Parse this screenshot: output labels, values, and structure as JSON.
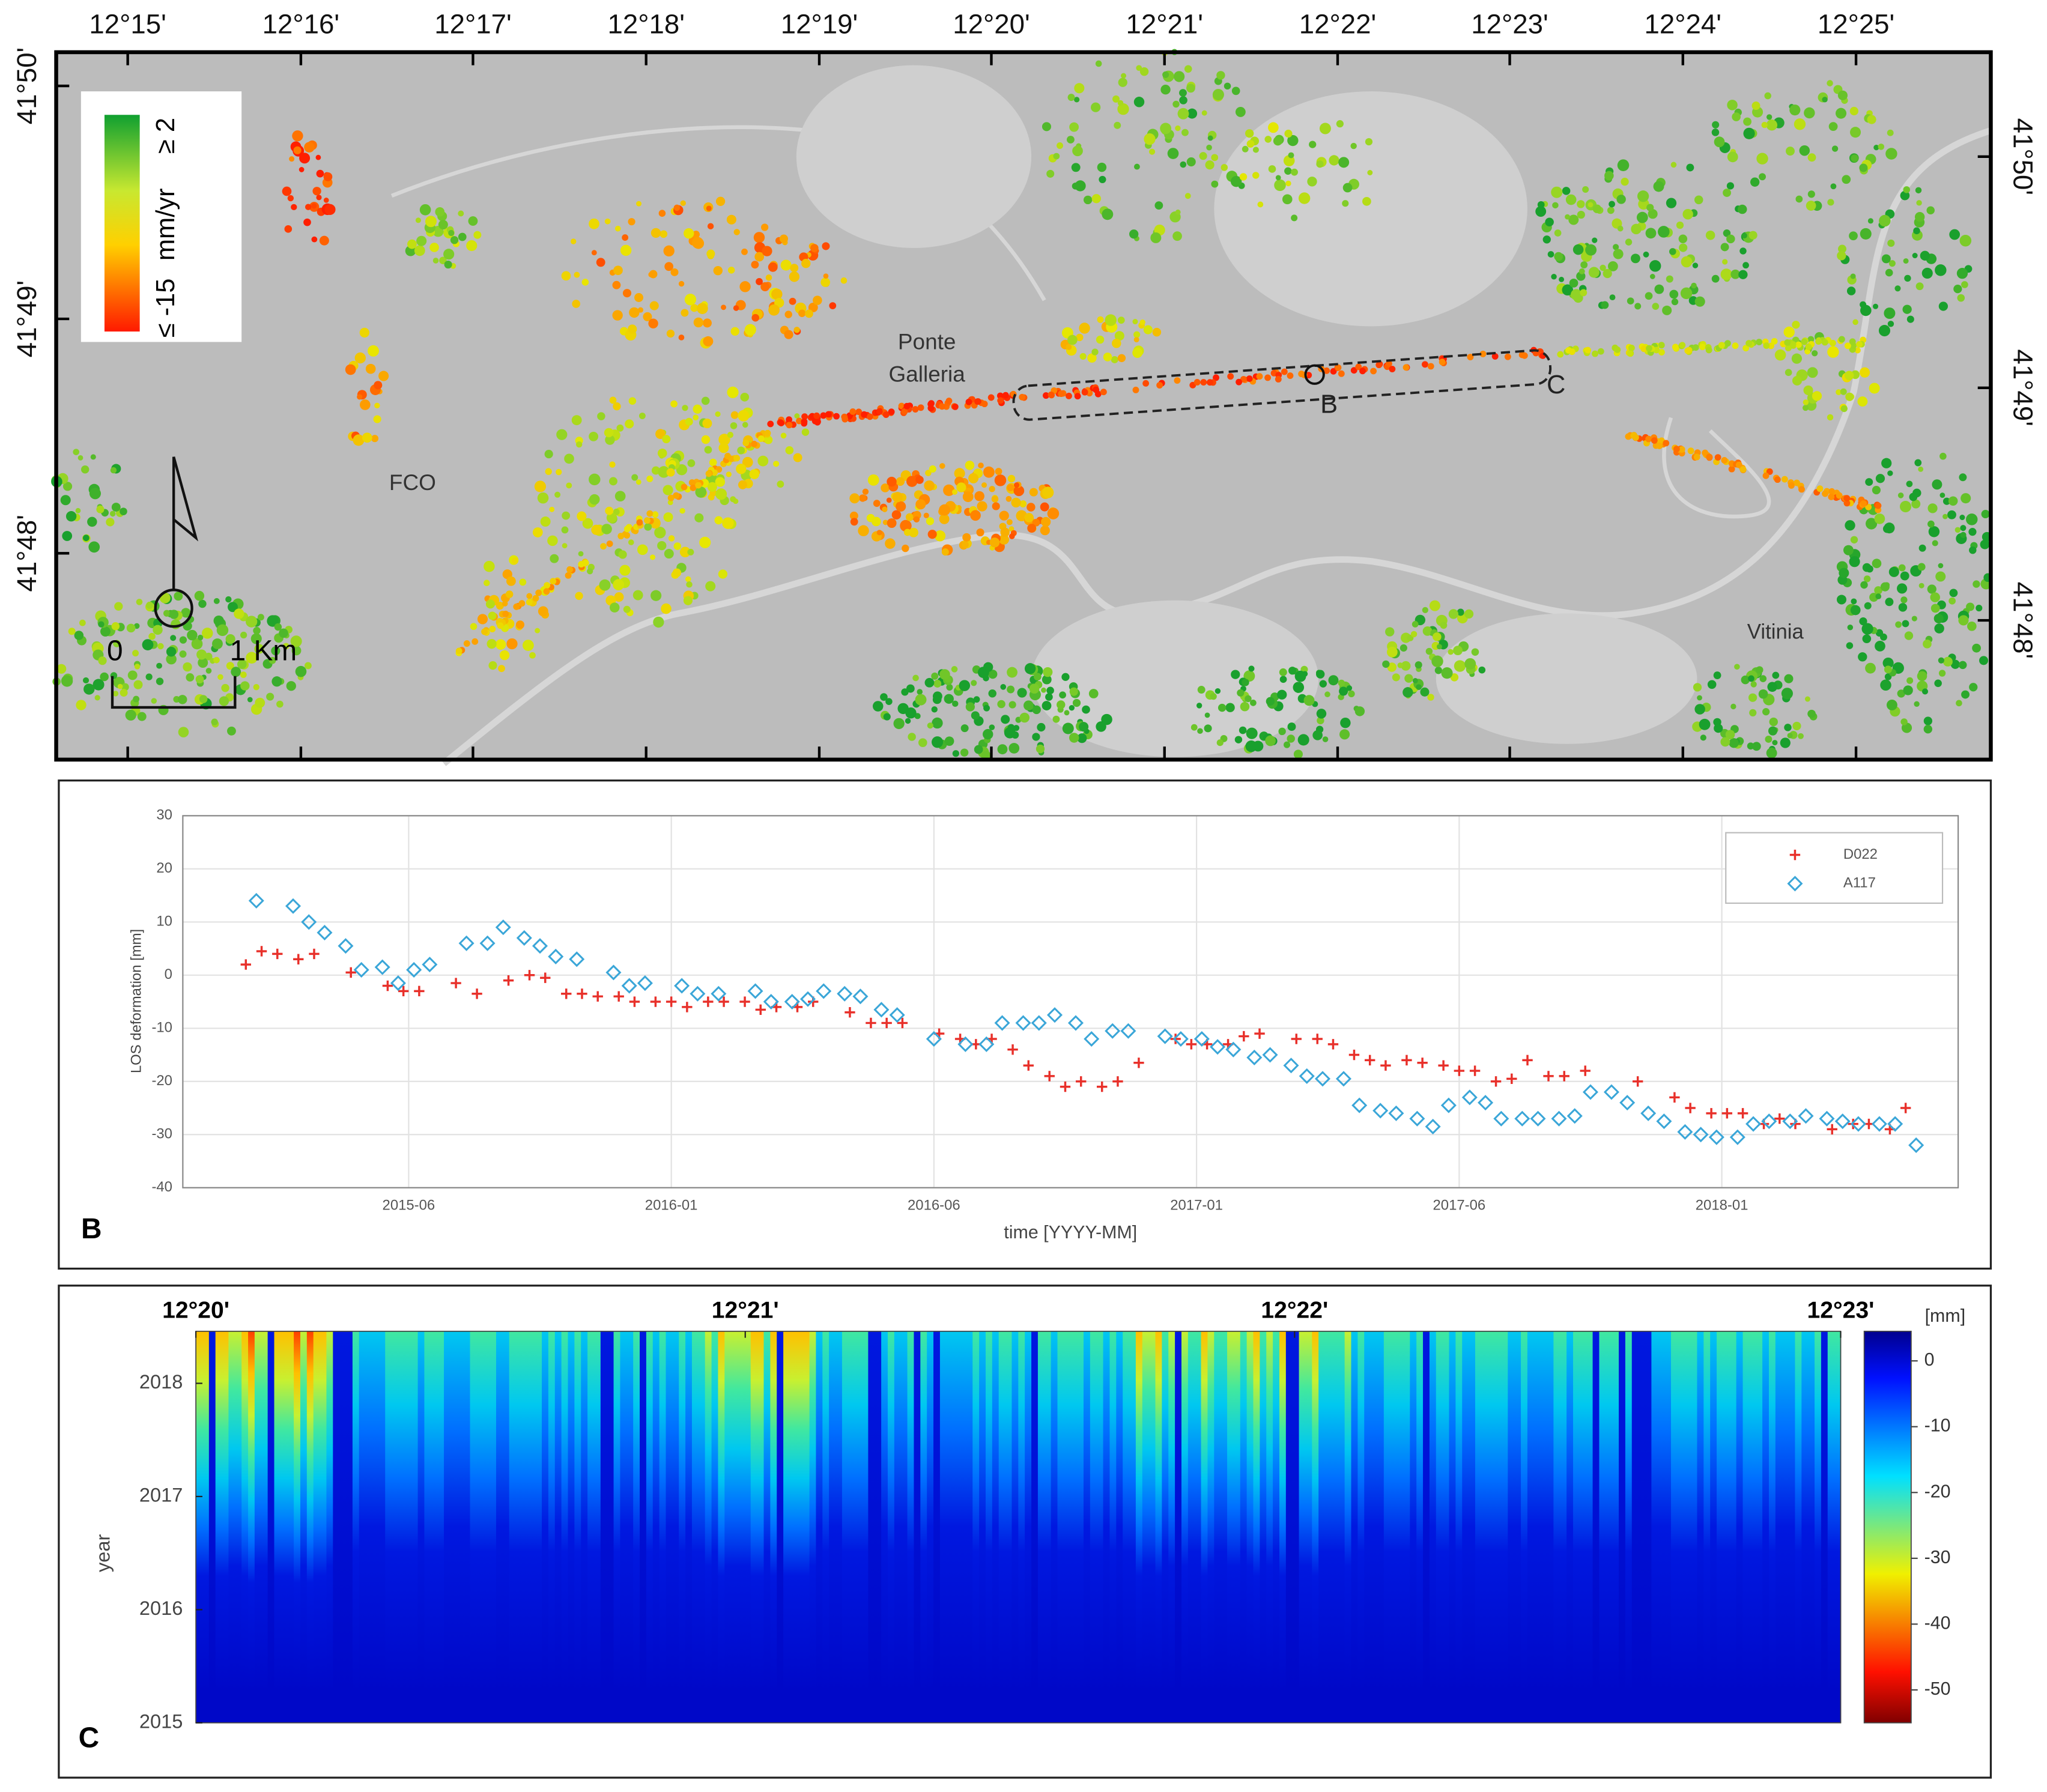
{
  "chart_data": [
    {
      "type": "map",
      "xlim": [
        12.2431,
        12.4297
      ],
      "xticks": [
        {
          "value": 12.25,
          "label": "12°15'"
        },
        {
          "value": 12.2667,
          "label": "12°16'"
        },
        {
          "value": 12.2833,
          "label": "12°17'"
        },
        {
          "value": 12.3,
          "label": "12°18'"
        },
        {
          "value": 12.3167,
          "label": "12°19'"
        },
        {
          "value": 12.3333,
          "label": "12°20'"
        },
        {
          "value": 12.35,
          "label": "12°21'"
        },
        {
          "value": 12.3667,
          "label": "12°22'"
        },
        {
          "value": 12.3833,
          "label": "12°23'"
        },
        {
          "value": 12.4,
          "label": "12°24'"
        },
        {
          "value": 12.4167,
          "label": "12°25'"
        }
      ],
      "ylim": [
        41.7853,
        41.8357
      ],
      "yticks": [
        {
          "value": 41.8333,
          "label": "41°50'"
        },
        {
          "value": 41.8167,
          "label": "41°49'"
        },
        {
          "value": 41.8,
          "label": "41°48'"
        }
      ],
      "y2lim": [
        41.79,
        41.8408
      ],
      "y2ticks": [
        {
          "value": 41.8333,
          "label": "41°50'"
        },
        {
          "value": 41.8167,
          "label": "41°49'"
        },
        {
          "value": 41.8,
          "label": "41°48'"
        }
      ],
      "legend": {
        "max_label": "≥ 2",
        "unit": "mm/yr",
        "min_label": "≤ -15"
      },
      "annotations": [
        "Ponte",
        "Galleria",
        "FCO",
        "Vitinia",
        "B",
        "C"
      ],
      "scale_bar": [
        "0",
        "1 Km"
      ]
    },
    {
      "type": "scatter",
      "panel_label": "B",
      "xlabel": "time [YYYY-MM]",
      "ylabel": "LOS deformation [mm]",
      "xlim": [
        2015.05,
        2018.43
      ],
      "xticks": [
        {
          "value": 2015.48,
          "label": "2015-06"
        },
        {
          "value": 2015.98,
          "label": "2016-01"
        },
        {
          "value": 2016.48,
          "label": "2016-06"
        },
        {
          "value": 2016.98,
          "label": "2017-01"
        },
        {
          "value": 2017.48,
          "label": "2017-06"
        },
        {
          "value": 2017.98,
          "label": "2018-01"
        }
      ],
      "ylim": [
        -40,
        30
      ],
      "yticks": [
        30,
        20,
        10,
        0,
        -10,
        -20,
        -30,
        -40
      ],
      "grid": true,
      "legend": "top-right",
      "series": [
        {
          "name": "D022",
          "color": "#e8302a",
          "x": [
            2015.17,
            2015.2,
            2015.23,
            2015.27,
            2015.3,
            2015.37,
            2015.44,
            2015.47,
            2015.5,
            2015.57,
            2015.61,
            2015.67,
            2015.71,
            2015.74,
            2015.78,
            2015.81,
            2015.84,
            2015.88,
            2015.91,
            2015.95,
            2015.98,
            2016.01,
            2016.05,
            2016.08,
            2016.12,
            2016.15,
            2016.18,
            2016.22,
            2016.25,
            2016.32,
            2016.36,
            2016.39,
            2016.42,
            2016.49,
            2016.53,
            2016.56,
            2016.59,
            2016.63,
            2016.66,
            2016.7,
            2016.73,
            2016.76,
            2016.8,
            2016.83,
            2016.87,
            2016.94,
            2016.97,
            2017.0,
            2017.04,
            2017.07,
            2017.1,
            2017.17,
            2017.21,
            2017.24,
            2017.28,
            2017.31,
            2017.34,
            2017.38,
            2017.41,
            2017.45,
            2017.48,
            2017.51,
            2017.55,
            2017.58,
            2017.61,
            2017.65,
            2017.68,
            2017.72,
            2017.82,
            2017.89,
            2017.92,
            2017.96,
            2017.99,
            2018.02,
            2018.06,
            2018.09,
            2018.12,
            2018.19,
            2018.23,
            2018.26,
            2018.3,
            2018.33
          ],
          "values": [
            2,
            4.5,
            4,
            3,
            4,
            0.5,
            -2,
            -3,
            -3,
            -1.5,
            -3.5,
            -1,
            0,
            -0.5,
            -3.5,
            -3.5,
            -4,
            -4,
            -5,
            -5,
            -5,
            -6,
            -5,
            -5,
            -5,
            -6.5,
            -6,
            -6,
            -5,
            -7,
            -9,
            -9,
            -9,
            -11,
            -12,
            -13,
            -12,
            -14,
            -17,
            -19,
            -21,
            -20,
            -21,
            -20,
            -16.5,
            -12,
            -13,
            -13,
            -13,
            -11.5,
            -11,
            -12,
            -12,
            -13,
            -15,
            -16,
            -17,
            -16,
            -16.5,
            -17,
            -18,
            -18,
            -20,
            -19.5,
            -16,
            -19,
            -19,
            -18,
            -20,
            -23,
            -25,
            -26,
            -26,
            -26,
            -28,
            -27,
            -28,
            -29,
            -28,
            -28,
            -29,
            -25
          ]
        },
        {
          "name": "A117",
          "color": "#3aa6d8",
          "x": [
            2015.19,
            2015.26,
            2015.29,
            2015.32,
            2015.36,
            2015.39,
            2015.43,
            2015.46,
            2015.49,
            2015.52,
            2015.59,
            2015.63,
            2015.66,
            2015.7,
            2015.73,
            2015.76,
            2015.8,
            2015.87,
            2015.9,
            2015.93,
            2016.0,
            2016.03,
            2016.07,
            2016.14,
            2016.17,
            2016.21,
            2016.24,
            2016.27,
            2016.31,
            2016.34,
            2016.38,
            2016.41,
            2016.48,
            2016.54,
            2016.58,
            2016.61,
            2016.65,
            2016.68,
            2016.71,
            2016.75,
            2016.78,
            2016.82,
            2016.85,
            2016.92,
            2016.95,
            2016.99,
            2017.02,
            2017.05,
            2017.09,
            2017.12,
            2017.16,
            2017.19,
            2017.22,
            2017.26,
            2017.29,
            2017.33,
            2017.36,
            2017.4,
            2017.43,
            2017.46,
            2017.5,
            2017.53,
            2017.56,
            2017.6,
            2017.63,
            2017.67,
            2017.7,
            2017.73,
            2017.77,
            2017.8,
            2017.84,
            2017.87,
            2017.91,
            2017.94,
            2017.97,
            2018.01,
            2018.04,
            2018.07,
            2018.11,
            2018.14,
            2018.18,
            2018.21,
            2018.24,
            2018.28,
            2018.31,
            2018.35
          ],
          "values": [
            14,
            13,
            10,
            8,
            5.5,
            1,
            1.5,
            -1.5,
            1,
            2,
            6,
            6,
            9,
            7,
            5.5,
            3.5,
            3,
            0.5,
            -2,
            -1.5,
            -2,
            -3.5,
            -3.5,
            -3,
            -5,
            -5,
            -4.5,
            -3,
            -3.5,
            -4,
            -6.5,
            -7.5,
            -12,
            -13,
            -13,
            -9,
            -9,
            -9,
            -7.5,
            -9,
            -12,
            -10.5,
            -10.5,
            -11.5,
            -12,
            -12,
            -13.5,
            -14,
            -15.5,
            -15,
            -17,
            -19,
            -19.5,
            -19.5,
            -24.5,
            -25.5,
            -26,
            -27,
            -28.5,
            -24.5,
            -23,
            -24,
            -27,
            -27,
            -27,
            -27,
            -26.5,
            -22,
            -22,
            -24,
            -26,
            -27.5,
            -29.5,
            -30,
            -30.5,
            -30.5,
            -28,
            -27.5,
            -27.5,
            -26.5,
            -27,
            -27.5,
            -28,
            -28,
            -28,
            -32
          ]
        }
      ]
    },
    {
      "type": "heatmap",
      "panel_label": "C",
      "ylabel": "year",
      "xlim": [
        12.3333,
        12.3833
      ],
      "xticks": [
        {
          "value": 12.3333,
          "label": "12°20'"
        },
        {
          "value": 12.35,
          "label": "12°21'"
        },
        {
          "value": 12.3667,
          "label": "12°22'"
        },
        {
          "value": 12.3833,
          "label": "12°23'"
        }
      ],
      "ylim": [
        2015,
        2018.46
      ],
      "yticks": [
        2015,
        2016,
        2017,
        2018
      ],
      "clim": [
        -55,
        4.5
      ],
      "cticks": [
        0,
        -10,
        -20,
        -30,
        -40,
        -50
      ],
      "clabel": "[mm]"
    }
  ]
}
